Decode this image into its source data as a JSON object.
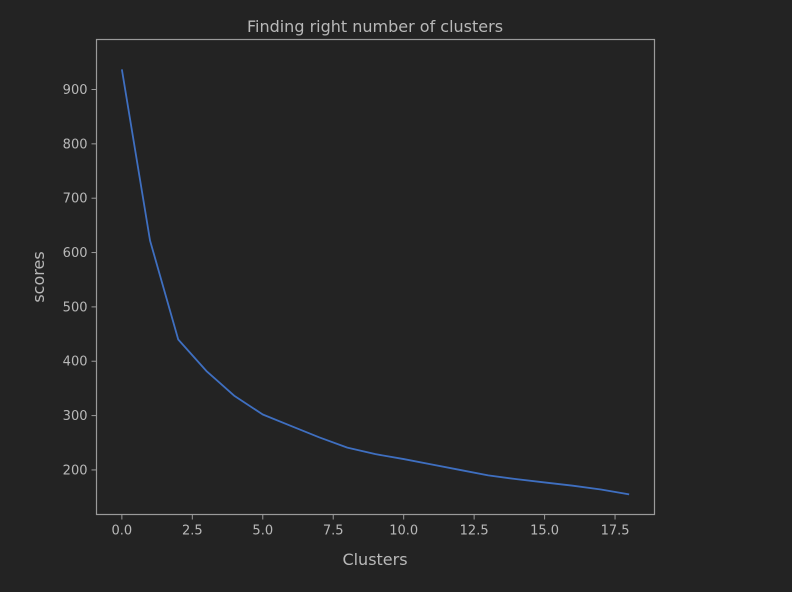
{
  "chart_data": {
    "type": "line",
    "title": "Finding right number of clusters",
    "xlabel": "Clusters",
    "ylabel": "scores",
    "xlim": [
      -0.9,
      18.9
    ],
    "ylim": [
      118,
      992
    ],
    "xticks": [
      0.0,
      2.5,
      5.0,
      7.5,
      10.0,
      12.5,
      15.0,
      17.5
    ],
    "xtick_labels": [
      "0.0",
      "2.5",
      "5.0",
      "7.5",
      "10.0",
      "12.5",
      "15.0",
      "17.5"
    ],
    "yticks": [
      200,
      300,
      400,
      500,
      600,
      700,
      800,
      900
    ],
    "ytick_labels": [
      "200",
      "300",
      "400",
      "500",
      "600",
      "700",
      "800",
      "900"
    ],
    "grid": false,
    "series": [
      {
        "color": "#3f6fc0",
        "x": [
          0,
          1,
          2,
          3,
          4,
          5,
          6,
          7,
          8,
          9,
          10,
          11,
          12,
          13,
          14,
          15,
          16,
          17,
          18
        ],
        "y": [
          937,
          622,
          440,
          382,
          336,
          302,
          281,
          260,
          241,
          229,
          220,
          210,
          200,
          190,
          183,
          177,
          171,
          164,
          155
        ]
      }
    ]
  }
}
